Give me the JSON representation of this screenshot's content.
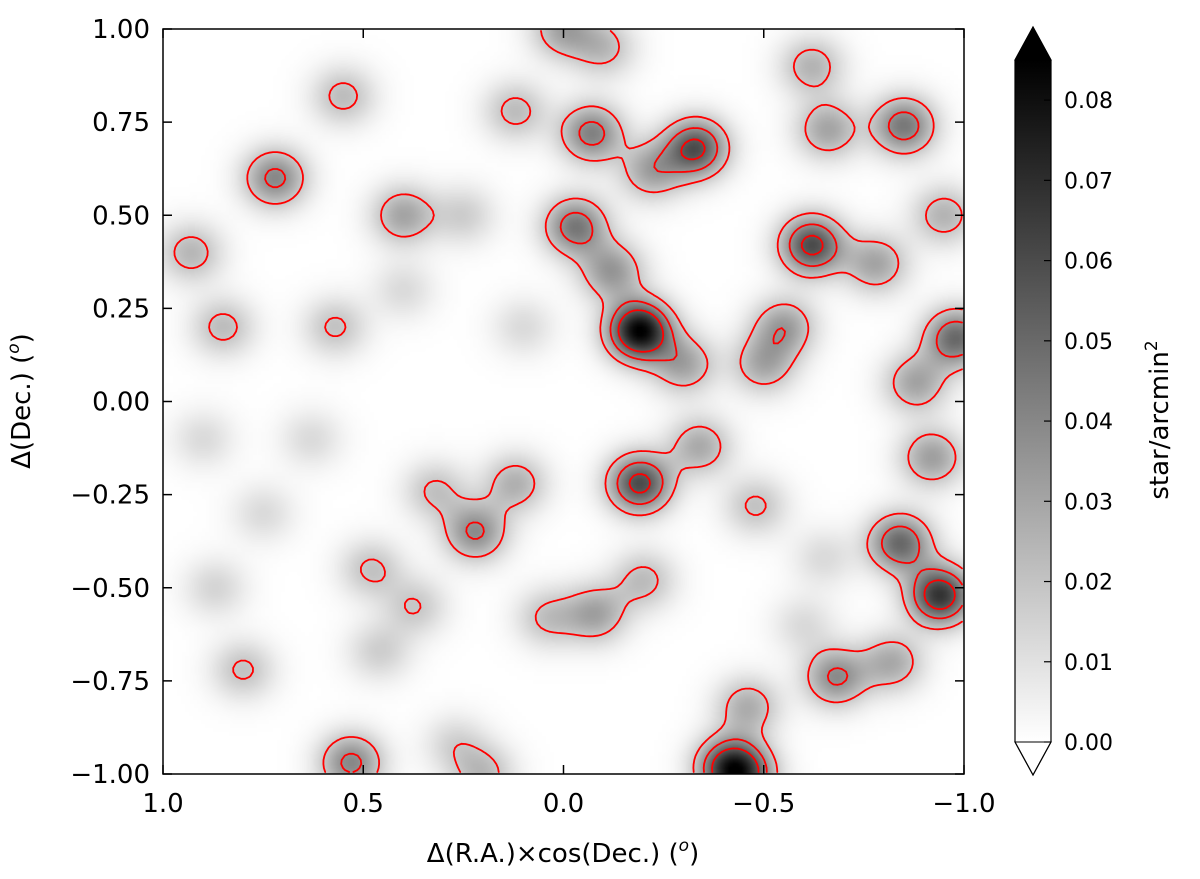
{
  "chart_data": {
    "type": "heatmap",
    "title": "",
    "xlabel": "Δ(R.A.)×cos(Dec.) (",
    "xlabel_sup": "o",
    "xlabel_end": ")",
    "ylabel": "Δ(Dec.) (",
    "ylabel_sup": "o",
    "ylabel_end": ")",
    "xlim": [
      1.0,
      -1.0
    ],
    "ylim": [
      -1.0,
      1.0
    ],
    "x_ticks": [
      {
        "value": 1.0,
        "label": "1.0"
      },
      {
        "value": 0.5,
        "label": "0.5"
      },
      {
        "value": 0.0,
        "label": "0.0"
      },
      {
        "value": -0.5,
        "label": "−0.5"
      },
      {
        "value": -1.0,
        "label": "−1.0"
      }
    ],
    "y_ticks": [
      {
        "value": 1.0,
        "label": "1.00"
      },
      {
        "value": 0.75,
        "label": "0.75"
      },
      {
        "value": 0.5,
        "label": "0.50"
      },
      {
        "value": 0.25,
        "label": "0.25"
      },
      {
        "value": 0.0,
        "label": "0.00"
      },
      {
        "value": -0.25,
        "label": "−0.25"
      },
      {
        "value": -0.5,
        "label": "−0.50"
      },
      {
        "value": -0.75,
        "label": "−0.75"
      },
      {
        "value": -1.0,
        "label": "−1.00"
      }
    ],
    "colormap": "gray_r",
    "contour_color": "#ff0000",
    "contour_levels": [
      0.018,
      0.036,
      0.054
    ],
    "grid": false,
    "colorbar": {
      "label": "star/arcmin",
      "label_sup": "2",
      "range": [
        0.0,
        0.085
      ],
      "extend": "both",
      "ticks": [
        {
          "value": 0.0,
          "label": "0.00"
        },
        {
          "value": 0.01,
          "label": "0.01"
        },
        {
          "value": 0.02,
          "label": "0.02"
        },
        {
          "value": 0.03,
          "label": "0.03"
        },
        {
          "value": 0.04,
          "label": "0.04"
        },
        {
          "value": 0.05,
          "label": "0.05"
        },
        {
          "value": 0.06,
          "label": "0.06"
        },
        {
          "value": 0.07,
          "label": "0.07"
        },
        {
          "value": 0.08,
          "label": "0.08"
        }
      ]
    },
    "density_peaks": [
      {
        "x": -0.19,
        "y": 0.19,
        "peak": 0.085
      },
      {
        "x": -0.33,
        "y": 0.68,
        "peak": 0.058
      },
      {
        "x": -0.62,
        "y": 0.42,
        "peak": 0.06
      },
      {
        "x": -0.19,
        "y": -0.22,
        "peak": 0.06
      },
      {
        "x": -0.94,
        "y": -0.52,
        "peak": 0.068
      },
      {
        "x": -0.84,
        "y": -0.38,
        "peak": 0.05
      },
      {
        "x": -0.98,
        "y": 0.17,
        "peak": 0.05
      },
      {
        "x": -0.85,
        "y": 0.74,
        "peak": 0.045
      },
      {
        "x": -0.07,
        "y": 0.72,
        "peak": 0.042
      },
      {
        "x": -0.03,
        "y": 0.47,
        "peak": 0.045
      },
      {
        "x": -0.41,
        "y": -0.98,
        "peak": 0.05
      },
      {
        "x": -0.45,
        "y": -1.0,
        "peak": 0.045
      },
      {
        "x": 0.53,
        "y": -0.97,
        "peak": 0.04
      },
      {
        "x": -0.68,
        "y": -0.74,
        "peak": 0.038
      },
      {
        "x": 0.72,
        "y": 0.6,
        "peak": 0.04
      },
      {
        "x": 0.22,
        "y": -0.35,
        "peak": 0.038
      },
      {
        "x": -0.92,
        "y": -0.15,
        "peak": 0.032
      },
      {
        "x": -0.12,
        "y": 0.35,
        "peak": 0.034
      },
      {
        "x": -0.55,
        "y": 0.2,
        "peak": 0.032
      },
      {
        "x": -0.66,
        "y": 0.73,
        "peak": 0.03
      },
      {
        "x": -0.78,
        "y": 0.37,
        "peak": 0.03
      },
      {
        "x": -0.22,
        "y": 0.62,
        "peak": 0.03
      },
      {
        "x": -0.88,
        "y": 0.05,
        "peak": 0.03
      },
      {
        "x": -0.08,
        "y": -0.57,
        "peak": 0.03
      },
      {
        "x": -0.82,
        "y": -0.7,
        "peak": 0.028
      },
      {
        "x": -0.3,
        "y": 0.1,
        "peak": 0.03
      },
      {
        "x": -0.5,
        "y": 0.1,
        "peak": 0.028
      },
      {
        "x": -0.34,
        "y": -0.12,
        "peak": 0.028
      },
      {
        "x": 0.12,
        "y": -0.22,
        "peak": 0.026
      },
      {
        "x": 0.4,
        "y": 0.5,
        "peak": 0.03
      },
      {
        "x": -0.46,
        "y": -0.82,
        "peak": 0.027
      },
      {
        "x": -0.95,
        "y": 0.5,
        "peak": 0.025
      },
      {
        "x": -0.1,
        "y": 0.95,
        "peak": 0.022
      },
      {
        "x": 0.0,
        "y": 1.0,
        "peak": 0.03
      },
      {
        "x": -0.62,
        "y": 0.9,
        "peak": 0.025
      },
      {
        "x": -0.2,
        "y": -0.48,
        "peak": 0.022
      },
      {
        "x": 0.04,
        "y": -0.58,
        "peak": 0.02
      },
      {
        "x": 0.55,
        "y": 0.82,
        "peak": 0.022
      },
      {
        "x": 0.85,
        "y": 0.2,
        "peak": 0.022
      },
      {
        "x": 0.57,
        "y": 0.2,
        "peak": 0.02
      },
      {
        "x": 0.12,
        "y": 0.78,
        "peak": 0.022
      },
      {
        "x": -0.48,
        "y": -0.28,
        "peak": 0.02
      },
      {
        "x": 0.93,
        "y": 0.4,
        "peak": 0.024
      },
      {
        "x": 0.32,
        "y": -0.24,
        "peak": 0.02
      },
      {
        "x": 0.25,
        "y": 0.5,
        "peak": 0.016
      },
      {
        "x": 0.48,
        "y": -0.45,
        "peak": 0.02
      },
      {
        "x": 0.87,
        "y": -0.5,
        "peak": 0.014
      },
      {
        "x": 0.37,
        "y": -0.55,
        "peak": 0.018
      },
      {
        "x": 0.8,
        "y": -0.72,
        "peak": 0.02
      },
      {
        "x": 0.27,
        "y": -0.92,
        "peak": 0.014
      },
      {
        "x": 0.2,
        "y": -1.0,
        "peak": 0.022
      },
      {
        "x": 0.46,
        "y": -0.67,
        "peak": 0.016
      },
      {
        "x": 0.63,
        "y": -0.1,
        "peak": 0.012
      },
      {
        "x": 0.75,
        "y": -0.3,
        "peak": 0.012
      },
      {
        "x": 0.9,
        "y": -0.1,
        "peak": 0.012
      },
      {
        "x": 0.1,
        "y": 0.2,
        "peak": 0.012
      },
      {
        "x": 0.4,
        "y": 0.3,
        "peak": 0.012
      },
      {
        "x": -0.6,
        "y": -0.6,
        "peak": 0.012
      },
      {
        "x": -0.65,
        "y": -0.42,
        "peak": 0.012
      }
    ]
  }
}
